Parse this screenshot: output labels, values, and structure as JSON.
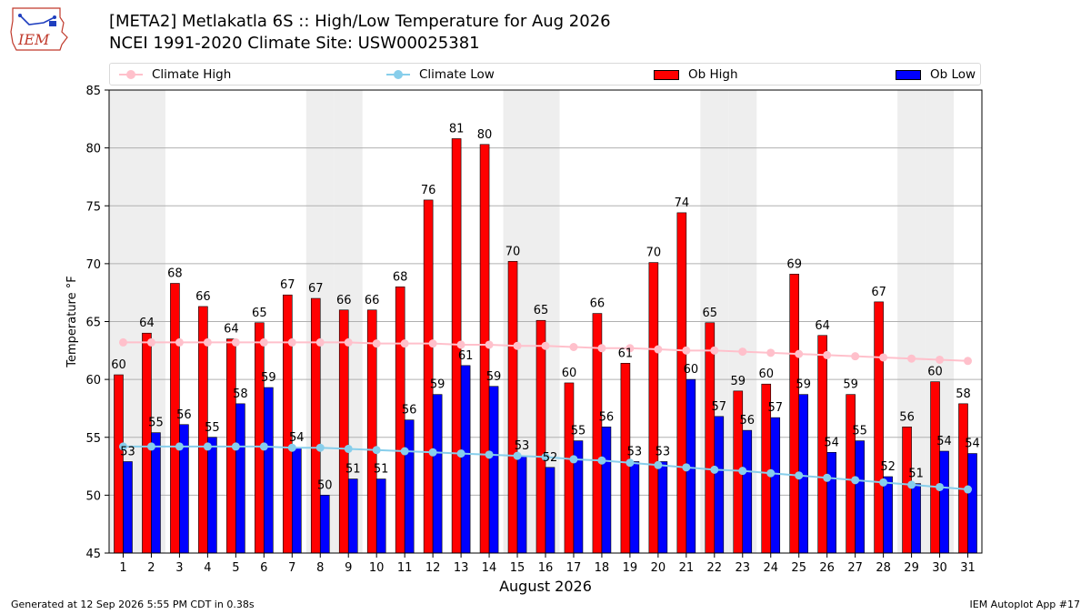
{
  "header": {
    "logo_text": "IEM",
    "title_line1": "[META2] Metlakatla 6S :: High/Low Temperature for Aug 2026",
    "title_line2": "NCEI 1991-2020 Climate Site: USW00025381"
  },
  "legend": {
    "climate_high": "Climate High",
    "climate_low": "Climate Low",
    "ob_high": "Ob High",
    "ob_low": "Ob Low"
  },
  "footer": {
    "generated": "Generated at 12 Sep 2026 5:55 PM CDT in 0.38s",
    "app": "IEM Autoplot App #17"
  },
  "colors": {
    "ob_high": "#ff0000",
    "ob_low": "#0000ff",
    "climate_high": "#ffc0cb",
    "climate_low": "#87ceeb",
    "weekend_band": "#eeeeee"
  },
  "chart_data": {
    "type": "bar",
    "xlabel": "August 2026",
    "ylabel": "Temperature °F",
    "ylim": [
      45,
      85
    ],
    "yticks": [
      45,
      50,
      55,
      60,
      65,
      70,
      75,
      80,
      85
    ],
    "grid": true,
    "legend_position": "top",
    "categories": [
      1,
      2,
      3,
      4,
      5,
      6,
      7,
      8,
      9,
      10,
      11,
      12,
      13,
      14,
      15,
      16,
      17,
      18,
      19,
      20,
      21,
      22,
      23,
      24,
      25,
      26,
      27,
      28,
      29,
      30,
      31
    ],
    "weekend_days": [
      1,
      2,
      8,
      9,
      15,
      16,
      22,
      23,
      29,
      30
    ],
    "series": [
      {
        "name": "Ob High",
        "kind": "bar",
        "values": [
          60.4,
          64.0,
          68.3,
          66.3,
          63.5,
          64.9,
          67.3,
          67.0,
          66.0,
          66.0,
          68.0,
          75.5,
          80.8,
          80.3,
          70.2,
          65.1,
          59.7,
          65.7,
          61.4,
          70.1,
          74.4,
          64.9,
          59.0,
          59.6,
          69.1,
          63.8,
          58.7,
          66.7,
          55.9,
          59.8,
          57.9
        ],
        "labels": [
          60,
          64,
          68,
          66,
          64,
          65,
          67,
          67,
          66,
          66,
          68,
          76,
          81,
          80,
          70,
          65,
          60,
          66,
          61,
          70,
          74,
          65,
          59,
          60,
          69,
          64,
          59,
          67,
          56,
          60,
          58
        ]
      },
      {
        "name": "Ob Low",
        "kind": "bar",
        "values": [
          52.9,
          55.4,
          56.1,
          55.0,
          57.9,
          59.3,
          54.1,
          50.0,
          51.4,
          51.4,
          56.5,
          58.7,
          61.2,
          59.4,
          53.4,
          52.4,
          54.7,
          55.9,
          52.9,
          52.9,
          60.0,
          56.8,
          55.6,
          56.7,
          58.7,
          53.7,
          54.7,
          51.6,
          51.0,
          53.8,
          53.6
        ],
        "labels": [
          53,
          55,
          56,
          55,
          58,
          59,
          54,
          50,
          51,
          51,
          56,
          59,
          61,
          59,
          53,
          52,
          55,
          56,
          53,
          53,
          60,
          57,
          56,
          57,
          59,
          54,
          55,
          52,
          51,
          54,
          54
        ]
      },
      {
        "name": "Climate High",
        "kind": "line",
        "values": [
          63.2,
          63.2,
          63.2,
          63.2,
          63.2,
          63.2,
          63.2,
          63.2,
          63.2,
          63.1,
          63.1,
          63.1,
          63.0,
          63.0,
          62.9,
          62.9,
          62.8,
          62.7,
          62.7,
          62.6,
          62.5,
          62.5,
          62.4,
          62.3,
          62.2,
          62.1,
          62.0,
          61.9,
          61.8,
          61.7,
          61.6
        ]
      },
      {
        "name": "Climate Low",
        "kind": "line",
        "values": [
          54.2,
          54.2,
          54.2,
          54.2,
          54.2,
          54.2,
          54.1,
          54.1,
          54.0,
          53.9,
          53.8,
          53.7,
          53.6,
          53.5,
          53.4,
          53.3,
          53.1,
          53.0,
          52.8,
          52.6,
          52.4,
          52.2,
          52.1,
          51.9,
          51.7,
          51.5,
          51.3,
          51.1,
          50.9,
          50.7,
          50.5
        ]
      }
    ]
  }
}
